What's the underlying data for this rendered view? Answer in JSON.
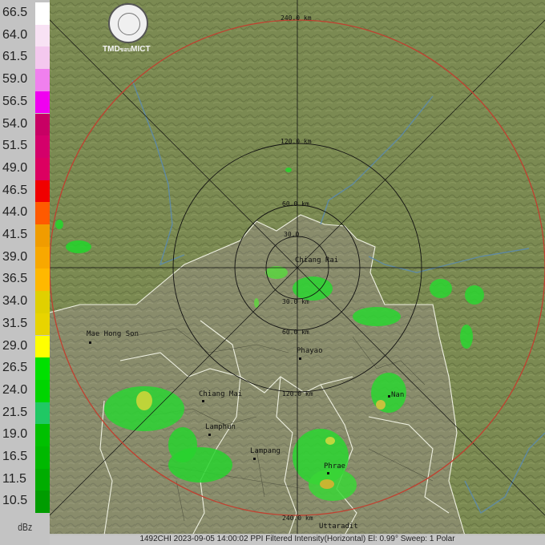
{
  "legend": {
    "unit": "dBz",
    "levels": [
      {
        "value": "66.5",
        "color": "#ffffff"
      },
      {
        "value": "64.0",
        "color": "#f8e2f4"
      },
      {
        "value": "61.5",
        "color": "#f4c8ee"
      },
      {
        "value": "59.0",
        "color": "#f080ee"
      },
      {
        "value": "56.5",
        "color": "#f000f0"
      },
      {
        "value": "54.0",
        "color": "#c80064"
      },
      {
        "value": "51.5",
        "color": "#d4006a"
      },
      {
        "value": "49.0",
        "color": "#dc0060"
      },
      {
        "value": "46.5",
        "color": "#f00000"
      },
      {
        "value": "44.0",
        "color": "#ff5a00"
      },
      {
        "value": "41.5",
        "color": "#f09c00"
      },
      {
        "value": "39.0",
        "color": "#f8a800"
      },
      {
        "value": "36.5",
        "color": "#ffb800"
      },
      {
        "value": "34.0",
        "color": "#e0d000"
      },
      {
        "value": "31.5",
        "color": "#e8d400"
      },
      {
        "value": "29.0",
        "color": "#ffff00"
      },
      {
        "value": "26.5",
        "color": "#00e000"
      },
      {
        "value": "24.0",
        "color": "#00d400"
      },
      {
        "value": "21.5",
        "color": "#20c864"
      },
      {
        "value": "19.0",
        "color": "#00c000"
      },
      {
        "value": "16.5",
        "color": "#00b800"
      },
      {
        "value": "11.5",
        "color": "#00ac00"
      },
      {
        "value": "10.5",
        "color": "#009c00"
      }
    ]
  },
  "logo": {
    "text": "TMD ขอบ MICT"
  },
  "range_rings": {
    "ring_240_top": "240.0 km",
    "ring_120_top": "120.0 km",
    "ring_60_top": "60.0 km",
    "ring_30_top": "30.0",
    "ring_30_bottom": "30.0 km",
    "ring_60_bottom": "60.0 km",
    "ring_120_bottom": "120.0 km",
    "ring_240_bottom": "240.0 km",
    "outer_ring_color": "#c04030"
  },
  "cities": {
    "chiang_rai": "Chiang Rai",
    "mae_hong_son": "Mae Hong Son",
    "phayao": "Phayao",
    "chiang_mai": "Chiang Mai",
    "lamphun": "Lamphun",
    "lampang": "Lampang",
    "nan": "Nan",
    "phrae": "Phrae",
    "uttaradit": "Uttaradit"
  },
  "status": "1492CHI 2023-09-05 14:00:02 PPI Filtered Intensity(Horizontal)  El: 0.99°  Sweep: 1 Polar"
}
